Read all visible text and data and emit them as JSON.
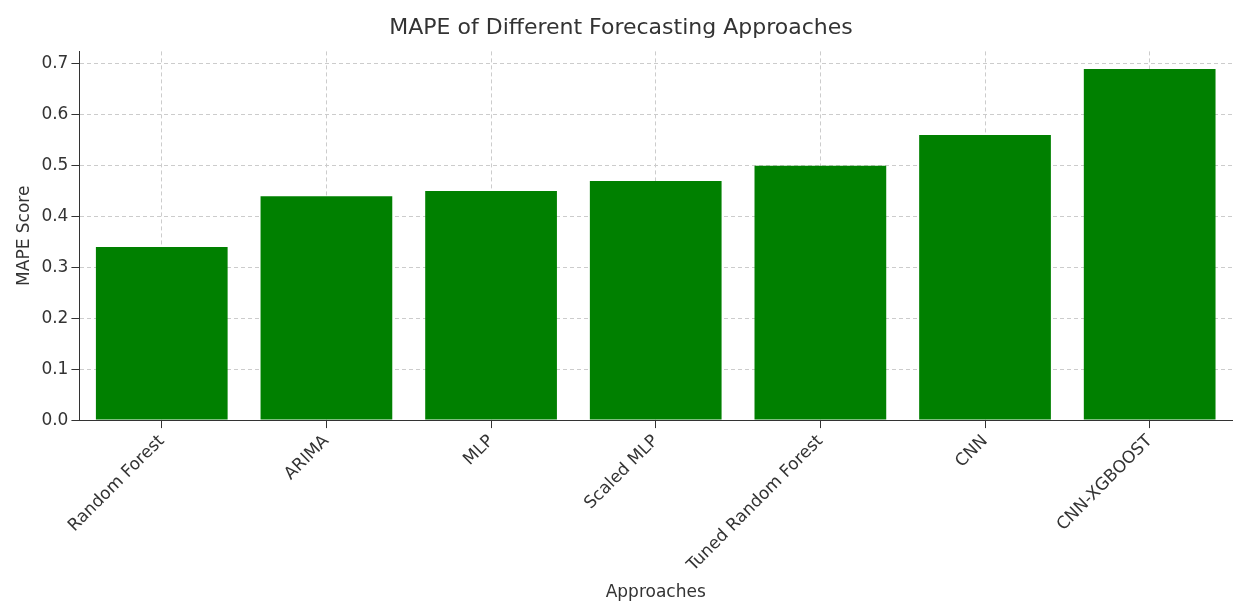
{
  "chart_data": {
    "type": "bar",
    "title": "MAPE of Different Forecasting Approaches",
    "xlabel": "Approaches",
    "ylabel": "MAPE Score",
    "categories": [
      "Random Forest",
      "ARIMA",
      "MLP",
      "Scaled MLP",
      "Tuned Random Forest",
      "CNN",
      "CNN-XGBOOST"
    ],
    "values": [
      0.34,
      0.44,
      0.45,
      0.47,
      0.5,
      0.56,
      0.69
    ],
    "color": "#008000",
    "ylim": [
      0,
      0.7245
    ],
    "yticks": [
      {
        "value": 0,
        "label": "0.0"
      },
      {
        "value": 0.1,
        "label": "0.1"
      },
      {
        "value": 0.2,
        "label": "0.2"
      },
      {
        "value": 0.3,
        "label": "0.3"
      },
      {
        "value": 0.4,
        "label": "0.4"
      },
      {
        "value": 0.5,
        "label": "0.5"
      },
      {
        "value": 0.6,
        "label": "0.6"
      },
      {
        "value": 0.7,
        "label": "0.7"
      }
    ],
    "grid": true
  }
}
